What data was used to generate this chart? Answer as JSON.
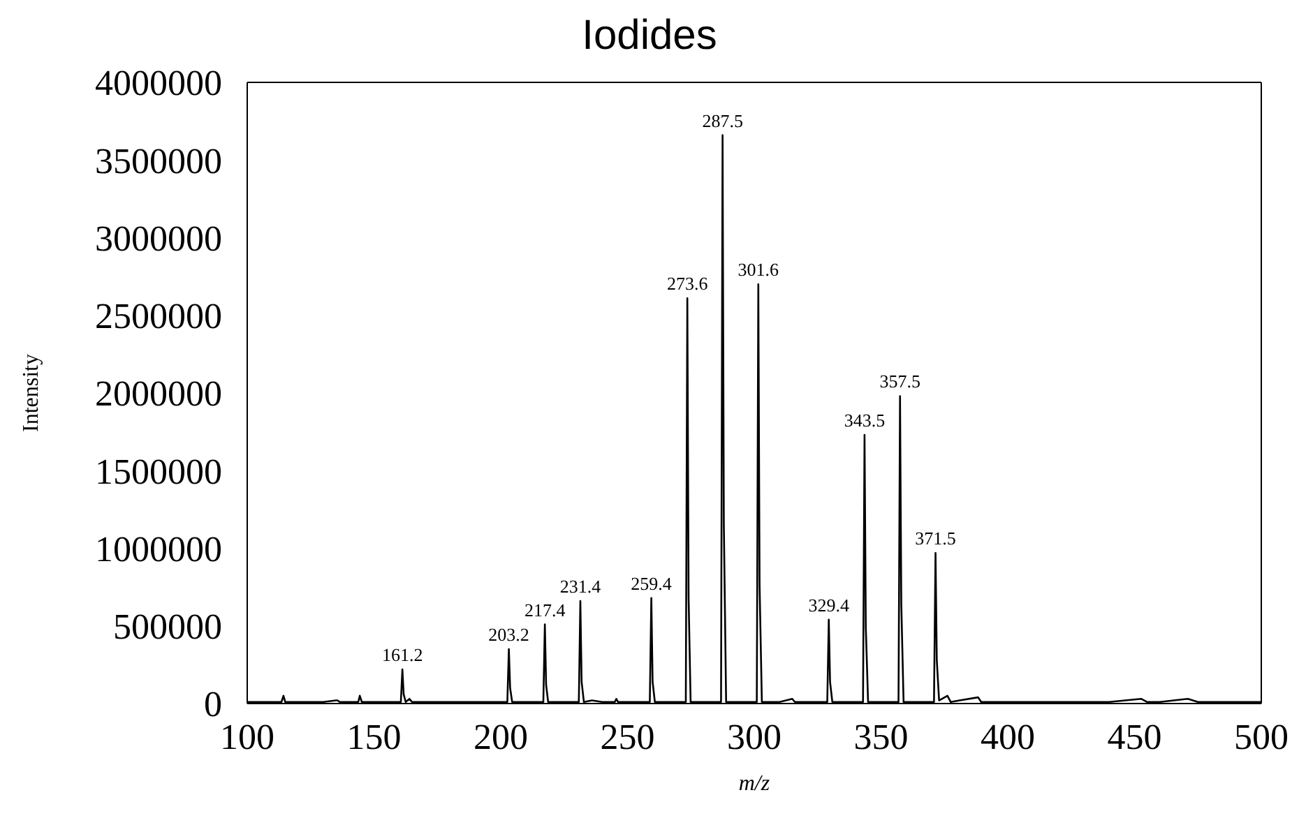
{
  "chart_data": {
    "type": "line",
    "title": "Iodides",
    "xlabel": "m/z",
    "ylabel": "Intensity",
    "x": [
      100,
      105,
      110,
      113.5,
      114.3,
      115,
      120,
      125,
      130,
      135,
      135.6,
      136.5,
      140,
      143.8,
      144.4,
      145.2,
      150,
      155,
      160.6,
      161.2,
      161.7,
      162.5,
      164,
      165,
      170,
      175,
      180,
      185,
      190,
      195,
      202.6,
      203.2,
      203.7,
      204.5,
      210,
      216.8,
      217.4,
      217.9,
      218.7,
      225,
      230.8,
      231.4,
      231.9,
      232.8,
      236,
      240,
      245,
      245.6,
      246.3,
      252,
      258.8,
      259.4,
      259.9,
      260.8,
      266,
      273,
      273.6,
      274.1,
      274.9,
      280,
      286.9,
      287.5,
      288,
      288.9,
      295,
      301,
      301.6,
      302.1,
      303,
      310,
      315,
      316,
      322,
      328.8,
      329.4,
      329.9,
      330.8,
      336,
      342.9,
      343.5,
      344,
      344.9,
      350,
      356.9,
      357.5,
      358,
      358.9,
      365,
      370.9,
      371.5,
      372,
      372.9,
      376.2,
      377.5,
      381,
      388.3,
      389.5,
      400,
      410,
      420,
      430,
      440,
      452.7,
      455,
      460,
      471,
      475,
      480,
      490,
      500
    ],
    "series": [
      {
        "color": "#000000",
        "values": [
          10000,
          10000,
          10000,
          10000,
          50000,
          10000,
          10000,
          10000,
          10000,
          20000,
          20000,
          10000,
          10000,
          10000,
          50000,
          10000,
          10000,
          10000,
          10000,
          220000,
          60000,
          10000,
          30000,
          10000,
          10000,
          10000,
          10000,
          10000,
          10000,
          10000,
          10000,
          350000,
          100000,
          10000,
          10000,
          10000,
          510000,
          120000,
          10000,
          10000,
          10000,
          660000,
          140000,
          10000,
          20000,
          10000,
          10000,
          30000,
          10000,
          10000,
          10000,
          680000,
          140000,
          10000,
          10000,
          10000,
          2610000,
          680000,
          10000,
          10000,
          10000,
          3660000,
          1160000,
          10000,
          10000,
          10000,
          2700000,
          760000,
          10000,
          10000,
          30000,
          10000,
          10000,
          10000,
          540000,
          140000,
          10000,
          10000,
          10000,
          1730000,
          490000,
          10000,
          10000,
          10000,
          1980000,
          640000,
          10000,
          10000,
          10000,
          970000,
          280000,
          20000,
          50000,
          10000,
          20000,
          40000,
          10000,
          10000,
          10000,
          10000,
          10000,
          10000,
          30000,
          10000,
          10000,
          30000,
          10000,
          10000,
          10000,
          10000
        ]
      }
    ],
    "xlim": [
      100,
      500
    ],
    "xticks": [
      100,
      150,
      200,
      250,
      300,
      350,
      400,
      450,
      500
    ],
    "ylim": [
      0,
      4000000
    ],
    "yticks": [
      0,
      500000,
      1000000,
      1500000,
      2000000,
      2500000,
      3000000,
      3500000,
      4000000
    ],
    "grid": false,
    "marker": "none",
    "line_style": "solid",
    "annotations": [
      {
        "text": "161.2",
        "x": 161.2,
        "y": 220000
      },
      {
        "text": "203.2",
        "x": 203.2,
        "y": 350000
      },
      {
        "text": "217.4",
        "x": 217.4,
        "y": 510000
      },
      {
        "text": "231.4",
        "x": 231.4,
        "y": 660000
      },
      {
        "text": "259.4",
        "x": 259.4,
        "y": 680000
      },
      {
        "text": "273.6",
        "x": 273.6,
        "y": 2610000
      },
      {
        "text": "287.5",
        "x": 287.5,
        "y": 3660000
      },
      {
        "text": "301.6",
        "x": 301.6,
        "y": 2700000
      },
      {
        "text": "329.4",
        "x": 329.4,
        "y": 540000
      },
      {
        "text": "343.5",
        "x": 343.5,
        "y": 1730000
      },
      {
        "text": "357.5",
        "x": 357.5,
        "y": 1980000
      },
      {
        "text": "371.5",
        "x": 371.5,
        "y": 970000
      }
    ]
  }
}
